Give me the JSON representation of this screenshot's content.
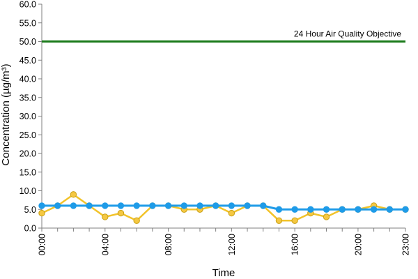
{
  "chart_data": {
    "type": "line",
    "xlabel": "Time",
    "ylabel": "Concentration (µg/m³)",
    "ylim": [
      0,
      60
    ],
    "y_ticks": [
      "0.0",
      "5.0",
      "10.0",
      "15.0",
      "20.0",
      "25.0",
      "30.0",
      "35.0",
      "40.0",
      "45.0",
      "50.0",
      "55.0",
      "60.0"
    ],
    "x_ticks": [
      "00:00",
      "04:00",
      "08:00",
      "12:00",
      "16:00",
      "20:00",
      "23:00"
    ],
    "x_tick_hours": [
      0,
      4,
      8,
      12,
      16,
      20,
      23
    ],
    "x_hours": [
      0,
      1,
      2,
      3,
      4,
      5,
      6,
      7,
      8,
      9,
      10,
      11,
      12,
      13,
      14,
      15,
      16,
      17,
      18,
      19,
      20,
      21,
      22,
      23
    ],
    "grid": false,
    "series": [
      {
        "color": "#f2c32a",
        "marker_color": "#f5c842",
        "values": [
          4,
          6,
          9,
          6,
          3,
          4,
          2,
          6,
          6,
          5,
          5,
          6,
          4,
          6,
          6,
          2,
          2,
          4,
          3,
          5,
          5,
          6,
          5,
          5
        ]
      },
      {
        "color": "#1e9be8",
        "marker_color": "#1e9be8",
        "values": [
          6,
          6,
          6,
          6,
          6,
          6,
          6,
          6,
          6,
          6,
          6,
          6,
          6,
          6,
          6,
          5,
          5,
          5,
          5,
          5,
          5,
          5,
          5,
          5
        ]
      }
    ],
    "reference_line": {
      "value": 50,
      "label": "24 Hour Air Quality Objective",
      "color": "#1a7a1a"
    }
  }
}
